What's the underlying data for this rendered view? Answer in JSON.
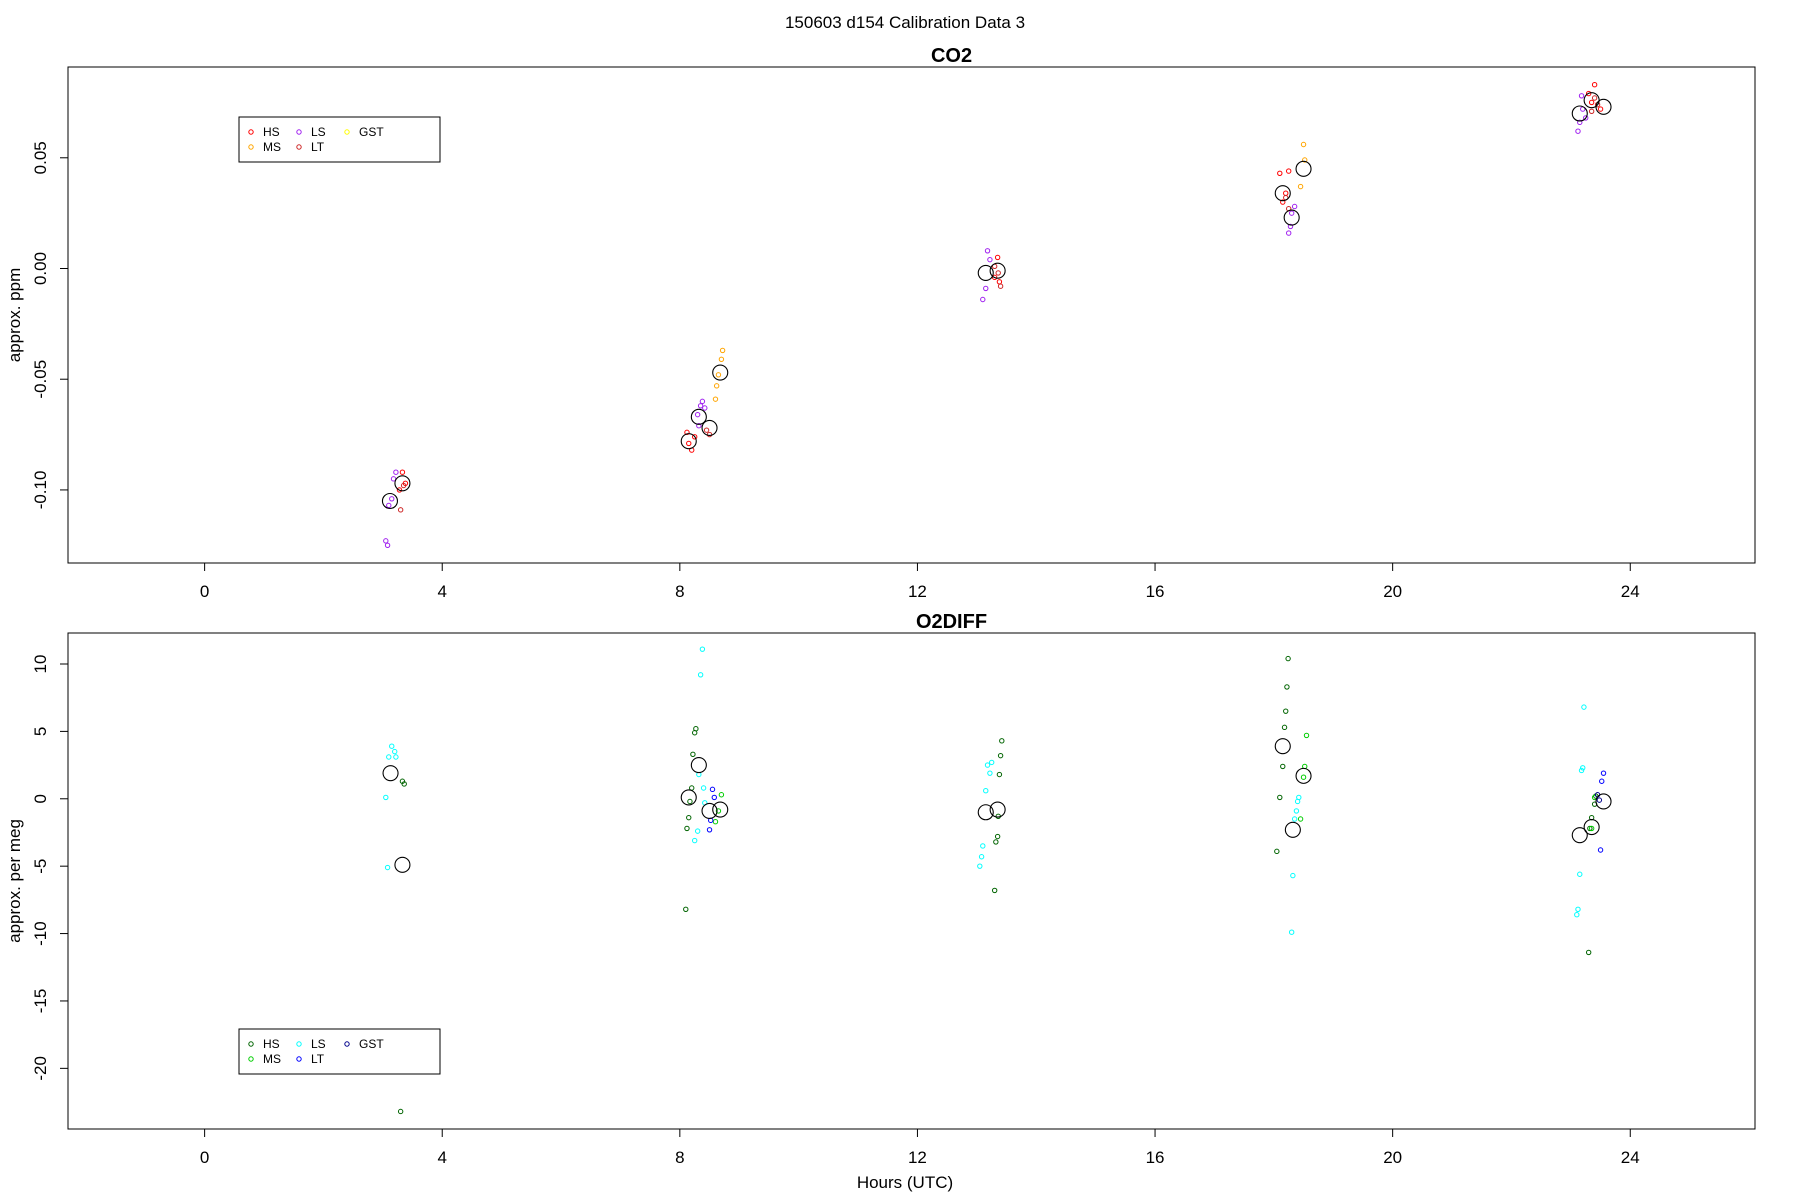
{
  "figure_title": "150603   d154   Calibration Data 3",
  "xlabel": "Hours (UTC)",
  "chart_data": [
    {
      "type": "scatter",
      "title": "CO2",
      "ylabel": "approx. ppm",
      "xlabel": "",
      "xlim": [
        -2.3,
        26.1
      ],
      "ylim": [
        -0.133,
        0.091
      ],
      "xticks": [
        0,
        4,
        8,
        12,
        16,
        20,
        24
      ],
      "yticks": [
        -0.1,
        -0.05,
        0.0,
        0.05
      ],
      "ytick_labels": [
        "-0.10",
        "-0.05",
        "0.00",
        "0.05"
      ],
      "grid": false,
      "legend": {
        "placement": "top-left",
        "entries": [
          {
            "name": "HS",
            "color": "#ff0000"
          },
          {
            "name": "MS",
            "color": "#ffa500"
          },
          {
            "name": "LS",
            "color": "#a020f0"
          },
          {
            "name": "LT",
            "color": "#cd2626"
          },
          {
            "name": "GST",
            "color": "#ffff00"
          }
        ]
      },
      "series": [
        {
          "name": "HS",
          "color": "#ff0000",
          "points": [
            [
              3.28,
              -0.1
            ],
            [
              3.33,
              -0.092
            ],
            [
              3.38,
              -0.097
            ],
            [
              8.12,
              -0.074
            ],
            [
              8.15,
              -0.079
            ],
            [
              8.2,
              -0.082
            ],
            [
              8.25,
              -0.076
            ],
            [
              13.3,
              -0.004
            ],
            [
              13.35,
              0.005
            ],
            [
              13.38,
              -0.006
            ],
            [
              18.1,
              0.043
            ],
            [
              18.15,
              0.03
            ],
            [
              18.2,
              0.034
            ],
            [
              18.25,
              0.044
            ],
            [
              23.3,
              0.079
            ],
            [
              23.35,
              0.075
            ],
            [
              23.4,
              0.083
            ],
            [
              23.5,
              0.072
            ]
          ]
        },
        {
          "name": "MS",
          "color": "#ffa500",
          "points": [
            [
              8.6,
              -0.059
            ],
            [
              8.62,
              -0.053
            ],
            [
              8.65,
              -0.048
            ],
            [
              8.7,
              -0.041
            ],
            [
              8.72,
              -0.037
            ],
            [
              18.45,
              0.037
            ],
            [
              18.5,
              0.056
            ],
            [
              18.52,
              0.049
            ]
          ]
        },
        {
          "name": "LS",
          "color": "#a020f0",
          "points": [
            [
              3.05,
              -0.123
            ],
            [
              3.08,
              -0.125
            ],
            [
              3.1,
              -0.107
            ],
            [
              3.15,
              -0.104
            ],
            [
              3.18,
              -0.095
            ],
            [
              3.22,
              -0.092
            ],
            [
              8.3,
              -0.066
            ],
            [
              8.32,
              -0.071
            ],
            [
              8.35,
              -0.062
            ],
            [
              8.38,
              -0.06
            ],
            [
              8.42,
              -0.063
            ],
            [
              13.1,
              -0.014
            ],
            [
              13.15,
              -0.009
            ],
            [
              13.18,
              0.008
            ],
            [
              13.22,
              0.004
            ],
            [
              18.25,
              0.016
            ],
            [
              18.28,
              0.019
            ],
            [
              18.3,
              0.025
            ],
            [
              18.35,
              0.028
            ],
            [
              23.12,
              0.062
            ],
            [
              23.15,
              0.066
            ],
            [
              23.18,
              0.078
            ],
            [
              23.2,
              0.072
            ],
            [
              23.25,
              0.068
            ]
          ]
        },
        {
          "name": "LT",
          "color": "#cd2626",
          "points": [
            [
              3.3,
              -0.109
            ],
            [
              3.35,
              -0.098
            ],
            [
              8.45,
              -0.073
            ],
            [
              8.5,
              -0.075
            ],
            [
              13.3,
              0.001
            ],
            [
              13.36,
              -0.002
            ],
            [
              13.4,
              -0.008
            ],
            [
              18.2,
              0.032
            ],
            [
              18.25,
              0.027
            ],
            [
              23.35,
              0.071
            ],
            [
              23.4,
              0.077
            ],
            [
              23.45,
              0.074
            ]
          ]
        },
        {
          "name": "mean",
          "color": "#000000",
          "marker": "large-circle",
          "points": [
            [
              3.12,
              -0.105
            ],
            [
              3.33,
              -0.097
            ],
            [
              8.15,
              -0.078
            ],
            [
              8.32,
              -0.067
            ],
            [
              8.5,
              -0.072
            ],
            [
              8.68,
              -0.047
            ],
            [
              13.15,
              -0.002
            ],
            [
              13.35,
              -0.001
            ],
            [
              18.15,
              0.034
            ],
            [
              18.3,
              0.023
            ],
            [
              18.5,
              0.045
            ],
            [
              23.15,
              0.07
            ],
            [
              23.35,
              0.076
            ],
            [
              23.55,
              0.073
            ]
          ]
        }
      ]
    },
    {
      "type": "scatter",
      "title": "O2DIFF",
      "ylabel": "approx. per meg",
      "xlabel": "Hours (UTC)",
      "xlim": [
        -2.3,
        26.1
      ],
      "ylim": [
        -24.5,
        12.3
      ],
      "xticks": [
        0,
        4,
        8,
        12,
        16,
        20,
        24
      ],
      "yticks": [
        -20,
        -15,
        -10,
        -5,
        0,
        5,
        10
      ],
      "ytick_labels": [
        "-20",
        "-15",
        "-10",
        "-5",
        "0",
        "5",
        "10"
      ],
      "grid": false,
      "legend": {
        "placement": "bottom-left",
        "entries": [
          {
            "name": "HS",
            "color": "#006400"
          },
          {
            "name": "MS",
            "color": "#00cd00"
          },
          {
            "name": "LS",
            "color": "#00ffff"
          },
          {
            "name": "LT",
            "color": "#0000ff"
          },
          {
            "name": "GST",
            "color": "#00008b"
          }
        ]
      },
      "series": [
        {
          "name": "HS",
          "color": "#006400",
          "points": [
            [
              3.33,
              1.3
            ],
            [
              3.36,
              1.1
            ],
            [
              3.3,
              -23.2
            ],
            [
              8.1,
              -8.2
            ],
            [
              8.12,
              -2.2
            ],
            [
              8.15,
              -1.4
            ],
            [
              8.17,
              -0.2
            ],
            [
              8.2,
              0.8
            ],
            [
              8.22,
              3.3
            ],
            [
              8.25,
              4.9
            ],
            [
              8.27,
              5.2
            ],
            [
              13.3,
              -6.8
            ],
            [
              13.32,
              -3.2
            ],
            [
              13.35,
              -2.8
            ],
            [
              13.36,
              -1.3
            ],
            [
              13.38,
              1.8
            ],
            [
              13.4,
              3.2
            ],
            [
              13.42,
              4.3
            ],
            [
              18.05,
              -3.9
            ],
            [
              18.1,
              0.1
            ],
            [
              18.15,
              2.4
            ],
            [
              18.18,
              5.3
            ],
            [
              18.2,
              6.5
            ],
            [
              18.22,
              8.3
            ],
            [
              18.24,
              10.4
            ],
            [
              23.3,
              -11.4
            ],
            [
              23.32,
              -2.2
            ],
            [
              23.35,
              -1.4
            ],
            [
              23.4,
              -0.4
            ],
            [
              23.42,
              0.2
            ]
          ]
        },
        {
          "name": "MS",
          "color": "#00cd00",
          "points": [
            [
              8.6,
              -1.7
            ],
            [
              8.65,
              -0.9
            ],
            [
              8.7,
              0.3
            ],
            [
              18.45,
              -1.5
            ],
            [
              18.5,
              1.6
            ],
            [
              18.52,
              2.4
            ],
            [
              18.55,
              4.7
            ],
            [
              23.35,
              -2.2
            ],
            [
              23.4,
              0.1
            ]
          ]
        },
        {
          "name": "LS",
          "color": "#00ffff",
          "points": [
            [
              3.05,
              0.1
            ],
            [
              3.08,
              -5.1
            ],
            [
              3.1,
              3.1
            ],
            [
              3.15,
              3.9
            ],
            [
              3.2,
              3.5
            ],
            [
              3.22,
              3.1
            ],
            [
              8.25,
              -3.1
            ],
            [
              8.3,
              -2.4
            ],
            [
              8.32,
              1.8
            ],
            [
              8.35,
              9.2
            ],
            [
              8.38,
              11.1
            ],
            [
              8.4,
              0.8
            ],
            [
              8.42,
              -0.3
            ],
            [
              13.05,
              -5.0
            ],
            [
              13.08,
              -4.3
            ],
            [
              13.1,
              -3.5
            ],
            [
              13.15,
              0.6
            ],
            [
              13.18,
              2.5
            ],
            [
              13.22,
              1.9
            ],
            [
              13.25,
              2.7
            ],
            [
              18.3,
              -9.9
            ],
            [
              18.32,
              -5.7
            ],
            [
              18.35,
              -1.5
            ],
            [
              18.38,
              -0.9
            ],
            [
              18.4,
              -0.2
            ],
            [
              18.42,
              0.1
            ],
            [
              23.1,
              -8.6
            ],
            [
              23.12,
              -8.2
            ],
            [
              23.15,
              -5.6
            ],
            [
              23.18,
              2.1
            ],
            [
              23.2,
              2.3
            ],
            [
              23.22,
              6.8
            ]
          ]
        },
        {
          "name": "LT",
          "color": "#0000ff",
          "points": [
            [
              8.5,
              -2.3
            ],
            [
              8.52,
              -1.6
            ],
            [
              8.55,
              0.7
            ],
            [
              8.58,
              0.1
            ],
            [
              23.5,
              -3.8
            ],
            [
              23.52,
              1.3
            ],
            [
              23.55,
              1.9
            ]
          ]
        },
        {
          "name": "GST",
          "color": "#00008b",
          "points": [
            [
              23.45,
              0.3
            ],
            [
              23.48,
              -0.1
            ]
          ]
        },
        {
          "name": "mean",
          "color": "#000000",
          "marker": "large-circle",
          "points": [
            [
              3.13,
              1.9
            ],
            [
              3.33,
              -4.9
            ],
            [
              8.15,
              0.1
            ],
            [
              8.32,
              2.5
            ],
            [
              8.5,
              -0.9
            ],
            [
              8.68,
              -0.8
            ],
            [
              13.15,
              -1.0
            ],
            [
              13.35,
              -0.8
            ],
            [
              18.15,
              3.9
            ],
            [
              18.32,
              -2.3
            ],
            [
              18.5,
              1.7
            ],
            [
              23.15,
              -2.7
            ],
            [
              23.35,
              -2.1
            ],
            [
              23.55,
              -0.2
            ]
          ]
        }
      ]
    }
  ]
}
